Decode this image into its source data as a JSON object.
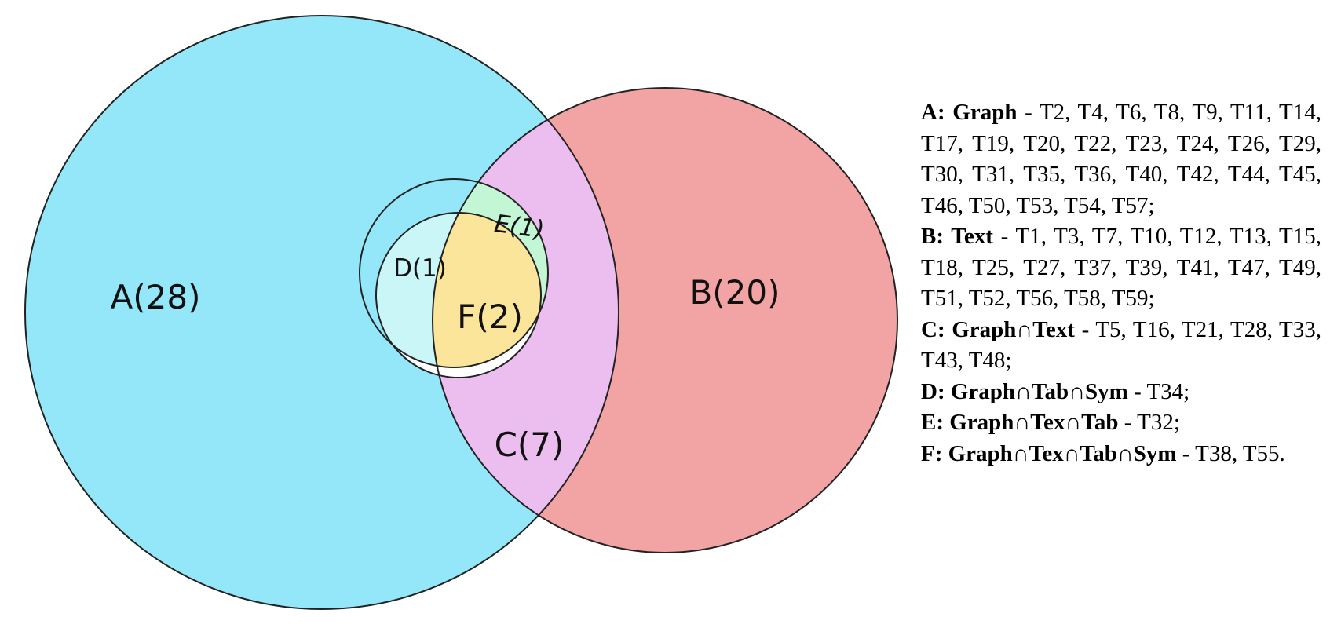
{
  "diagram": {
    "type": "venn",
    "colors": {
      "A": "#93e7f8",
      "B": "#f2a3a4",
      "C": "#ebbeef",
      "D": "#cbf6f8",
      "E": "#c3f6d5",
      "F": "#fbe59a",
      "outline": "#222222"
    },
    "regions": [
      {
        "id": "A",
        "label": "A(28)"
      },
      {
        "id": "B",
        "label": "B(20)"
      },
      {
        "id": "C",
        "label": "C(7)"
      },
      {
        "id": "D",
        "label": "D(1)"
      },
      {
        "id": "E",
        "label": "E(1)"
      },
      {
        "id": "F",
        "label": "F(2)"
      }
    ]
  },
  "legend": [
    {
      "key": "A: Graph",
      "items": " - T2, T4, T6, T8, T9, T11, T14, T17, T19, T20, T22, T23, T24, T26, T29, T30, T31, T35, T36, T40, T42, T44, T45, T46, T50, T53, T54, T57;"
    },
    {
      "key": "B: Text",
      "items": " - T1, T3, T7, T10, T12, T13, T15, T18, T25, T27, T37, T39, T41, T47, T49, T51, T52, T56, T58, T59;"
    },
    {
      "key": "C: Graph∩Text",
      "items": " - T5, T16, T21, T28, T33, T43, T48;"
    },
    {
      "key": "D: Graph∩Tab∩Sym",
      "items": " - T34;"
    },
    {
      "key": "E: Graph∩Tex∩Tab",
      "items": " - T32;"
    },
    {
      "key": "F: Graph∩Tex∩Tab∩Sym",
      "items": " - T38, T55."
    }
  ]
}
